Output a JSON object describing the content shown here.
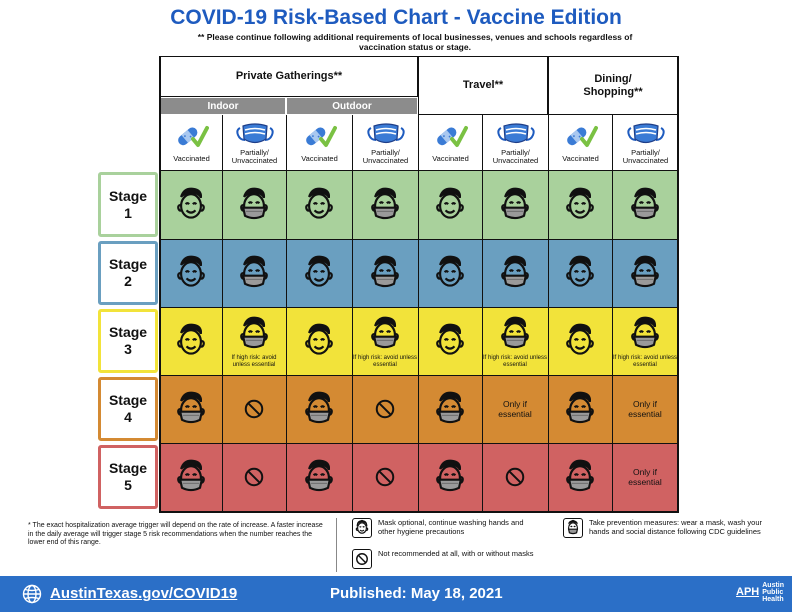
{
  "title": "COVID-19 Risk-Based Chart - Vaccine Edition",
  "subtitle": "** Please continue following additional requirements of local businesses, venues and schools regardless of vaccination status or stage.",
  "headers": {
    "private": "Private Gatherings**",
    "indoor": "Indoor",
    "outdoor": "Outdoor",
    "travel": "Travel**",
    "dining": "Dining/ Shopping**"
  },
  "col_labels": {
    "vaccinated": "Vaccinated",
    "unvaccinated": "Partially/ Unvaccinated"
  },
  "stages": [
    {
      "label": "Stage 1",
      "color": "#a9d19c",
      "border": "#a9d19c",
      "face": "smile"
    },
    {
      "label": "Stage 2",
      "color": "#6a9fc0",
      "border": "#6a9fc0",
      "face": "smile"
    },
    {
      "label": "Stage 3",
      "color": "#f2e33a",
      "border": "#f2e33a",
      "face": "smile"
    },
    {
      "label": "Stage 4",
      "color": "#d48a33",
      "border": "#d48a33",
      "face": "mask"
    },
    {
      "label": "Stage 5",
      "color": "#d06262",
      "border": "#d06262",
      "face": "mask"
    }
  ],
  "notes": {
    "high_risk": "If high risk: avoid unless essential",
    "only_if": "Only if essential"
  },
  "footnote": "* The exact hospitalization average trigger will depend on the rate of increase. A faster increase in the daily average will trigger stage 5 risk recommendations when the number reaches the lower end of this range.",
  "legend": {
    "mask_optional": "Mask optional, continue washing hands and other hygiene precautions",
    "not_recommended": "Not recommended at all, with or without masks",
    "prevention": "Take prevention measures: wear a mask, wash your hands and social distance following CDC guidelines"
  },
  "footer": {
    "url": "AustinTexas.gov/COVID19",
    "published": "Published: May 18, 2021",
    "logo_text": "Austin Public Health",
    "logo_mark": "APH"
  }
}
